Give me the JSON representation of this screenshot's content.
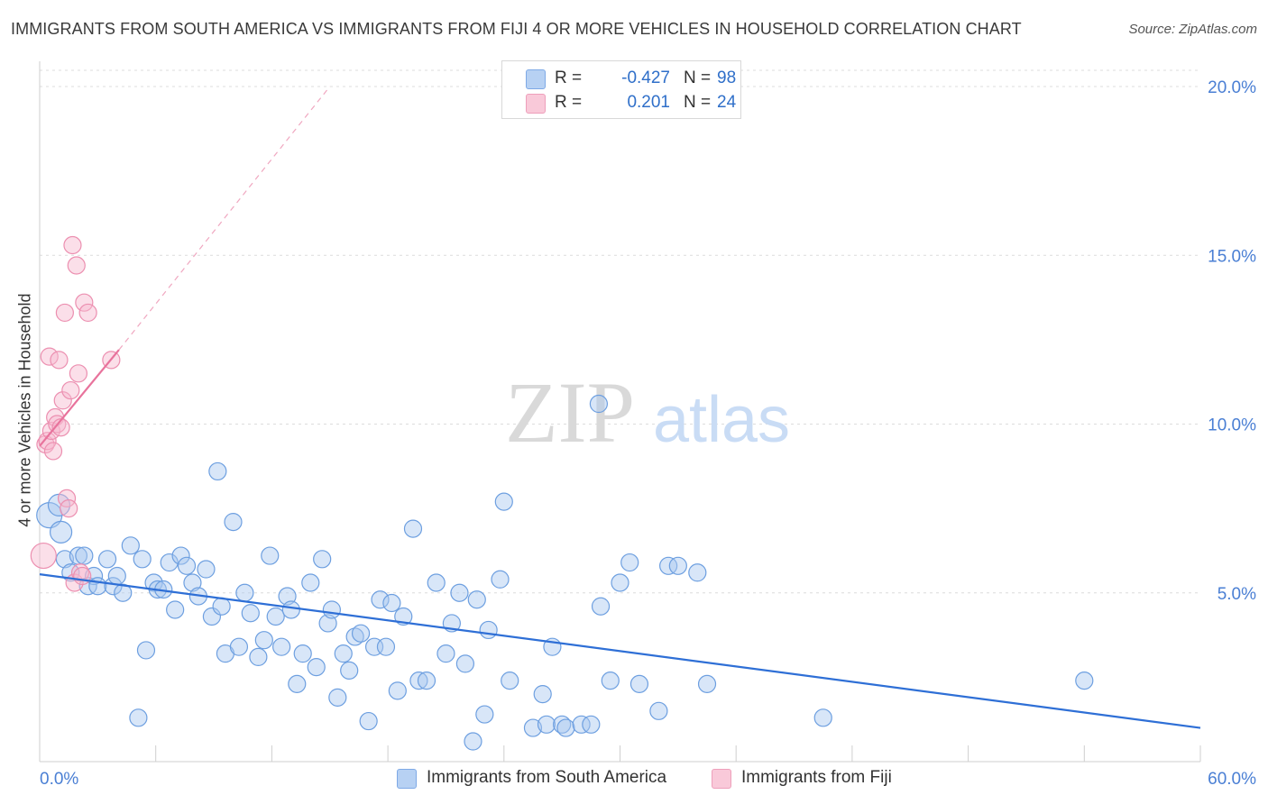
{
  "header": {
    "title": "IMMIGRANTS FROM SOUTH AMERICA VS IMMIGRANTS FROM FIJI 4 OR MORE VEHICLES IN HOUSEHOLD CORRELATION CHART",
    "source": "Source: ZipAtlas.com"
  },
  "watermark": {
    "zip": "ZIP",
    "atlas": "atlas"
  },
  "legend": {
    "r_label": "R =",
    "n_label": "N =",
    "series": [
      {
        "r": "-0.427",
        "n": "98"
      },
      {
        "r": "0.201",
        "n": "24"
      }
    ]
  },
  "chart_data": {
    "type": "scatter",
    "ylabel": "4 or more Vehicles in Household",
    "xlim": [
      0,
      60
    ],
    "ylim": [
      0,
      20
    ],
    "x_tick_labels": [
      {
        "value": 0,
        "label": "0.0%"
      },
      {
        "value": 60,
        "label": "60.0%"
      }
    ],
    "y_tick_labels": [
      {
        "value": 5,
        "label": "5.0%"
      },
      {
        "value": 10,
        "label": "10.0%"
      },
      {
        "value": 15,
        "label": "15.0%"
      },
      {
        "value": 20,
        "label": "20.0%"
      }
    ],
    "series": [
      {
        "name": "Immigrants from South America",
        "color": "#a8c8f0",
        "stroke": "#6d9fe0",
        "line_color": "#2e6fd6",
        "trend": {
          "x0": 0,
          "y0": 5.55,
          "x1": 60,
          "y1": 1.0
        },
        "points": [
          [
            0.5,
            7.3
          ],
          [
            1.0,
            7.6
          ],
          [
            1.1,
            6.8
          ],
          [
            1.3,
            6.0
          ],
          [
            1.6,
            5.6
          ],
          [
            2.0,
            6.1
          ],
          [
            2.3,
            6.1
          ],
          [
            2.5,
            5.2
          ],
          [
            2.8,
            5.5
          ],
          [
            3.0,
            5.2
          ],
          [
            3.5,
            6.0
          ],
          [
            3.8,
            5.2
          ],
          [
            4.0,
            5.5
          ],
          [
            4.3,
            5.0
          ],
          [
            4.7,
            6.4
          ],
          [
            5.1,
            1.3
          ],
          [
            5.3,
            6.0
          ],
          [
            5.5,
            3.3
          ],
          [
            5.9,
            5.3
          ],
          [
            6.1,
            5.1
          ],
          [
            6.4,
            5.1
          ],
          [
            6.7,
            5.9
          ],
          [
            7.0,
            4.5
          ],
          [
            7.3,
            6.1
          ],
          [
            7.6,
            5.8
          ],
          [
            7.9,
            5.3
          ],
          [
            8.2,
            4.9
          ],
          [
            8.6,
            5.7
          ],
          [
            8.9,
            4.3
          ],
          [
            9.2,
            8.6
          ],
          [
            9.4,
            4.6
          ],
          [
            9.6,
            3.2
          ],
          [
            10.0,
            7.1
          ],
          [
            10.3,
            3.4
          ],
          [
            10.6,
            5.0
          ],
          [
            10.9,
            4.4
          ],
          [
            11.3,
            3.1
          ],
          [
            11.6,
            3.6
          ],
          [
            11.9,
            6.1
          ],
          [
            12.2,
            4.3
          ],
          [
            12.5,
            3.4
          ],
          [
            12.8,
            4.9
          ],
          [
            13.0,
            4.5
          ],
          [
            13.3,
            2.3
          ],
          [
            13.6,
            3.2
          ],
          [
            14.0,
            5.3
          ],
          [
            14.3,
            2.8
          ],
          [
            14.6,
            6.0
          ],
          [
            14.9,
            4.1
          ],
          [
            15.1,
            4.5
          ],
          [
            15.4,
            1.9
          ],
          [
            15.7,
            3.2
          ],
          [
            16.0,
            2.7
          ],
          [
            16.3,
            3.7
          ],
          [
            16.6,
            3.8
          ],
          [
            17.0,
            1.2
          ],
          [
            17.3,
            3.4
          ],
          [
            17.6,
            4.8
          ],
          [
            17.9,
            3.4
          ],
          [
            18.2,
            4.7
          ],
          [
            18.5,
            2.1
          ],
          [
            18.8,
            4.3
          ],
          [
            19.3,
            6.9
          ],
          [
            19.6,
            2.4
          ],
          [
            20.0,
            2.4
          ],
          [
            20.5,
            5.3
          ],
          [
            21.0,
            3.2
          ],
          [
            21.3,
            4.1
          ],
          [
            21.7,
            5.0
          ],
          [
            22.0,
            2.9
          ],
          [
            22.4,
            0.6
          ],
          [
            22.6,
            4.8
          ],
          [
            23.0,
            1.4
          ],
          [
            23.2,
            3.9
          ],
          [
            23.8,
            5.4
          ],
          [
            24.0,
            7.7
          ],
          [
            24.3,
            2.4
          ],
          [
            25.5,
            1.0
          ],
          [
            26.0,
            2.0
          ],
          [
            26.2,
            1.1
          ],
          [
            26.5,
            3.4
          ],
          [
            27.0,
            1.1
          ],
          [
            27.2,
            1.0
          ],
          [
            28.0,
            1.1
          ],
          [
            28.5,
            1.1
          ],
          [
            29.0,
            4.6
          ],
          [
            29.5,
            2.4
          ],
          [
            28.9,
            10.6
          ],
          [
            30.0,
            5.3
          ],
          [
            30.5,
            5.9
          ],
          [
            31.0,
            2.3
          ],
          [
            32.0,
            1.5
          ],
          [
            32.5,
            5.8
          ],
          [
            33.0,
            5.8
          ],
          [
            34.0,
            5.6
          ],
          [
            34.5,
            2.3
          ],
          [
            40.5,
            1.3
          ],
          [
            54.0,
            2.4
          ]
        ]
      },
      {
        "name": "Immigrants from Fiji",
        "color": "#f7b9cf",
        "stroke": "#ec8fb0",
        "line_color": "#e8739c",
        "trend": {
          "x0": 0,
          "y0": 9.35,
          "x1": 4.1,
          "y1": 12.2
        },
        "trend_dashed": {
          "x0": 4.1,
          "y0": 12.2,
          "x1": 15,
          "y1": 20.0
        },
        "points": [
          [
            0.2,
            6.1
          ],
          [
            0.3,
            9.4
          ],
          [
            0.4,
            9.5
          ],
          [
            0.5,
            12.0
          ],
          [
            0.6,
            9.8
          ],
          [
            0.7,
            9.2
          ],
          [
            0.8,
            10.2
          ],
          [
            0.9,
            10.0
          ],
          [
            1.0,
            11.9
          ],
          [
            1.1,
            9.9
          ],
          [
            1.2,
            10.7
          ],
          [
            1.3,
            13.3
          ],
          [
            1.4,
            7.8
          ],
          [
            1.5,
            7.5
          ],
          [
            1.6,
            11.0
          ],
          [
            1.7,
            15.3
          ],
          [
            1.8,
            5.3
          ],
          [
            1.9,
            14.7
          ],
          [
            2.0,
            11.5
          ],
          [
            2.1,
            5.6
          ],
          [
            2.2,
            5.5
          ],
          [
            2.3,
            13.6
          ],
          [
            2.5,
            13.3
          ],
          [
            3.7,
            11.9
          ]
        ]
      }
    ]
  },
  "bottom_legend": {
    "items": [
      "Immigrants from South America",
      "Immigrants from Fiji"
    ]
  }
}
